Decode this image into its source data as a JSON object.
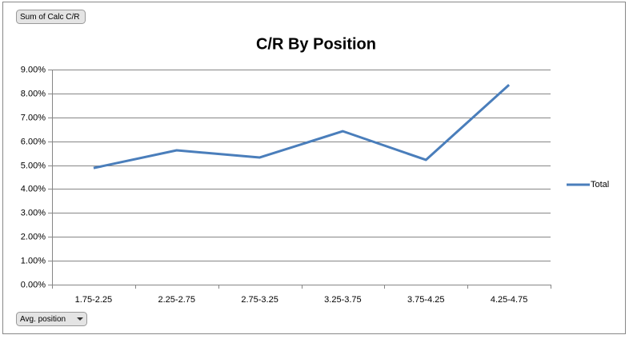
{
  "chart_data": {
    "type": "line",
    "title": "C/R By Position",
    "categories": [
      "1.75-2.25",
      "2.25-2.75",
      "2.75-3.25",
      "3.25-3.75",
      "3.75-4.25",
      "4.25-4.75"
    ],
    "series": [
      {
        "name": "Total",
        "color": "#4a7ebb",
        "values": [
          4.88,
          5.62,
          5.32,
          6.42,
          5.22,
          8.36
        ]
      }
    ],
    "ylim": [
      0,
      9
    ],
    "yticks": [
      {
        "value": 0,
        "label": "0.00%"
      },
      {
        "value": 1,
        "label": "1.00%"
      },
      {
        "value": 2,
        "label": "2.00%"
      },
      {
        "value": 3,
        "label": "3.00%"
      },
      {
        "value": 4,
        "label": "4.00%"
      },
      {
        "value": 5,
        "label": "5.00%"
      },
      {
        "value": 6,
        "label": "6.00%"
      },
      {
        "value": 7,
        "label": "7.00%"
      },
      {
        "value": 8,
        "label": "8.00%"
      },
      {
        "value": 9,
        "label": "9.00%"
      }
    ],
    "grid": true,
    "legend": "right"
  },
  "pivot_buttons": {
    "value_field": "Sum of Calc C/R",
    "axis_field": "Avg. position"
  }
}
